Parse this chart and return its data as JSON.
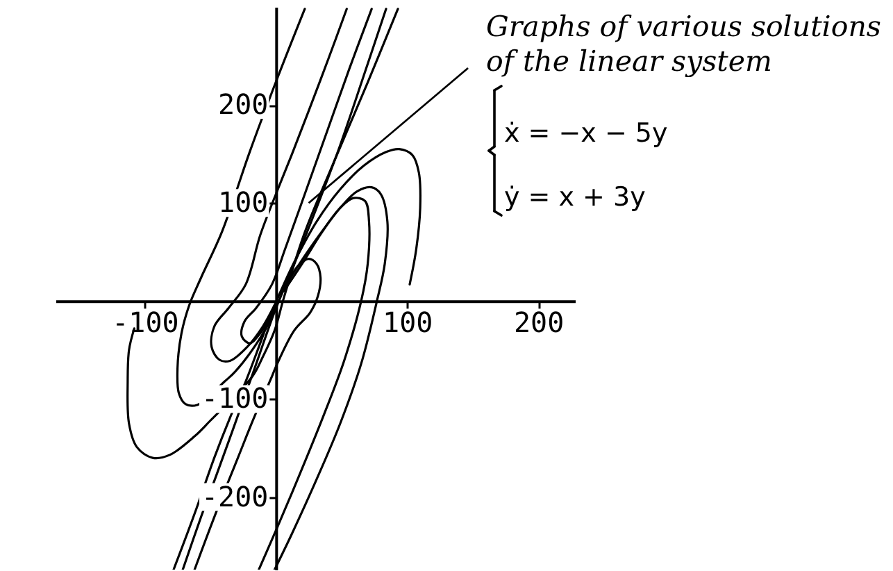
{
  "chart_data": {
    "type": "line",
    "xlim": [
      -168,
      228
    ],
    "ylim": [
      -274,
      300
    ],
    "xticks": [
      -100,
      100,
      200
    ],
    "yticks": [
      -200,
      -100,
      100,
      200
    ],
    "series": [
      {
        "color": "#000000",
        "x": [
          -108,
          -112,
          -113,
          -112,
          -106,
          -94,
          -81,
          -62,
          -50,
          -18,
          -10,
          -1,
          6,
          22,
          43,
          70,
          93
        ],
        "values": [
          -28,
          -50,
          -82,
          -125,
          -149,
          -160,
          -157,
          -138,
          -122,
          -77,
          -57,
          -30,
          3,
          70,
          138,
          223,
          298
        ]
      },
      {
        "color": "#000000",
        "x": [
          102,
          107,
          110,
          109,
          104,
          94,
          84,
          67,
          49,
          31,
          16,
          6,
          -3,
          -15,
          -23,
          -35,
          -47,
          -62,
          -78
        ],
        "values": [
          17,
          53,
          95,
          131,
          149,
          155,
          152,
          138,
          114,
          81,
          45,
          17,
          -11,
          -54,
          -82,
          -119,
          -160,
          -217,
          -274
        ]
      },
      {
        "color": "#000000",
        "x": [
          22,
          1,
          -20,
          -41,
          -57,
          -66,
          -72,
          -75,
          -74,
          -69,
          -60,
          -39,
          -31,
          -15,
          -3,
          1
        ],
        "values": [
          298,
          227,
          152,
          71,
          24,
          -4,
          -33,
          -68,
          -94,
          -105,
          -106,
          -82,
          -72,
          -44,
          -16,
          3
        ]
      },
      {
        "color": "#000000",
        "x": [
          -13,
          1,
          19,
          36,
          52,
          65,
          70,
          71,
          68,
          59,
          49,
          35,
          20,
          6
        ],
        "values": [
          -274,
          -231,
          -174,
          -118,
          -61,
          0,
          38,
          81,
          102,
          105,
          95,
          70,
          38,
          10
        ]
      },
      {
        "color": "#000000",
        "x": [
          -1,
          12,
          31,
          49,
          65,
          77,
          83,
          85,
          80,
          73,
          62,
          49,
          33,
          17,
          6
        ],
        "values": [
          -274,
          -238,
          -182,
          -125,
          -64,
          0,
          38,
          81,
          109,
          116,
          112,
          95,
          67,
          36,
          13
        ]
      },
      {
        "color": "#000000",
        "x": [
          54,
          40,
          25,
          12,
          0,
          -12,
          -23,
          -36,
          -47,
          -49,
          -43,
          -35,
          -22,
          -10,
          -1
        ],
        "values": [
          298,
          247,
          194,
          149,
          109,
          67,
          17,
          -7,
          -26,
          -47,
          -60,
          -61,
          -47,
          -26,
          -4
        ]
      },
      {
        "color": "#000000",
        "x": [
          -62,
          -46,
          -29,
          -17,
          -4,
          1,
          14,
          26,
          32,
          34,
          31,
          25,
          17,
          9,
          1
        ],
        "values": [
          -274,
          -217,
          -160,
          -120,
          -80,
          -64,
          -30,
          -12,
          5,
          24,
          38,
          43,
          36,
          20,
          3
        ]
      },
      {
        "color": "#000000",
        "x": [
          -71,
          -57,
          -46,
          -33,
          -15,
          -1,
          12,
          31,
          49,
          67,
          84
        ],
        "values": [
          -274,
          -220,
          -180,
          -132,
          -64,
          -11,
          31,
          95,
          159,
          230,
          298
        ]
      },
      {
        "color": "#000000",
        "x": [
          73,
          56,
          39,
          22,
          7,
          -3,
          -15,
          -24,
          -26,
          -20,
          -12,
          -3
        ],
        "values": [
          298,
          237,
          173,
          109,
          53,
          17,
          -7,
          -21,
          -36,
          -43,
          -33,
          -13
        ]
      }
    ],
    "annotations": [
      {
        "text": "Graphs of various solutions\nof the linear system",
        "x": 25,
        "y": 100
      },
      "ẋ = −x − 5y",
      "ẏ = x + 3y"
    ]
  }
}
